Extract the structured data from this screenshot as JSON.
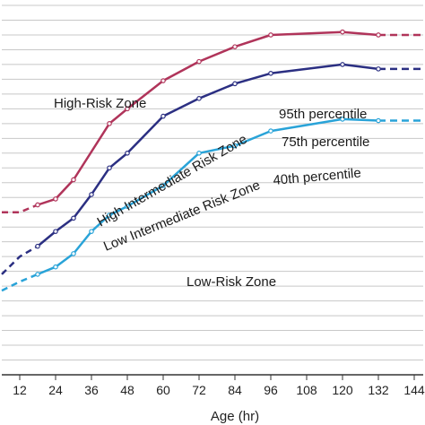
{
  "chart_data": {
    "type": "line",
    "xlabel": "Age (hr)",
    "x_ticks": [
      12,
      24,
      36,
      48,
      60,
      72,
      84,
      96,
      108,
      120,
      132,
      144
    ],
    "xlim": [
      6,
      147
    ],
    "ylim": [
      0,
      25
    ],
    "grid": true,
    "colors": {
      "p95": "#b0345a",
      "p75": "#2b2f82",
      "p40": "#29a3d8",
      "grid": "#c8c8c8",
      "axis": "#333333"
    },
    "zones": {
      "high": "High-Risk Zone",
      "high_intermediate": "High Intermediate Risk Zone",
      "low_intermediate": "Low Intermediate Risk Zone",
      "low": "Low-Risk Zone"
    },
    "series": [
      {
        "name": "95th percentile",
        "color": "#b0345a",
        "dashed_lead": [
          [
            6,
            11.0
          ],
          [
            12,
            11.0
          ],
          [
            18,
            11.5
          ]
        ],
        "values": [
          [
            18,
            11.5
          ],
          [
            24,
            11.9
          ],
          [
            30,
            13.2
          ],
          [
            42,
            17.0
          ],
          [
            48,
            18.0
          ],
          [
            60,
            19.9
          ],
          [
            72,
            21.2
          ],
          [
            84,
            22.2
          ],
          [
            96,
            23.0
          ],
          [
            120,
            23.2
          ],
          [
            132,
            23.0
          ]
        ],
        "dashed_tail": [
          [
            132,
            23.0
          ],
          [
            147,
            23.0
          ]
        ]
      },
      {
        "name": "75th percentile",
        "color": "#2b2f82",
        "dashed_lead": [
          [
            6,
            6.8
          ],
          [
            12,
            8.0
          ],
          [
            18,
            8.7
          ]
        ],
        "values": [
          [
            18,
            8.7
          ],
          [
            24,
            9.7
          ],
          [
            30,
            10.6
          ],
          [
            36,
            12.2
          ],
          [
            42,
            14.0
          ],
          [
            48,
            15.0
          ],
          [
            60,
            17.5
          ],
          [
            72,
            18.7
          ],
          [
            84,
            19.7
          ],
          [
            96,
            20.4
          ],
          [
            120,
            21.0
          ],
          [
            132,
            20.7
          ]
        ],
        "dashed_tail": [
          [
            132,
            20.7
          ],
          [
            147,
            20.7
          ]
        ]
      },
      {
        "name": "40th percentile",
        "color": "#29a3d8",
        "dashed_lead": [
          [
            6,
            5.7
          ],
          [
            12,
            6.3
          ],
          [
            18,
            6.8
          ]
        ],
        "values": [
          [
            18,
            6.8
          ],
          [
            24,
            7.3
          ],
          [
            30,
            8.2
          ],
          [
            36,
            9.7
          ],
          [
            42,
            10.8
          ],
          [
            48,
            11.4
          ],
          [
            60,
            12.8
          ],
          [
            72,
            15.0
          ],
          [
            84,
            15.5
          ],
          [
            96,
            16.5
          ],
          [
            120,
            17.3
          ],
          [
            132,
            17.2
          ]
        ],
        "dashed_tail": [
          [
            132,
            17.2
          ],
          [
            147,
            17.2
          ]
        ]
      }
    ]
  }
}
